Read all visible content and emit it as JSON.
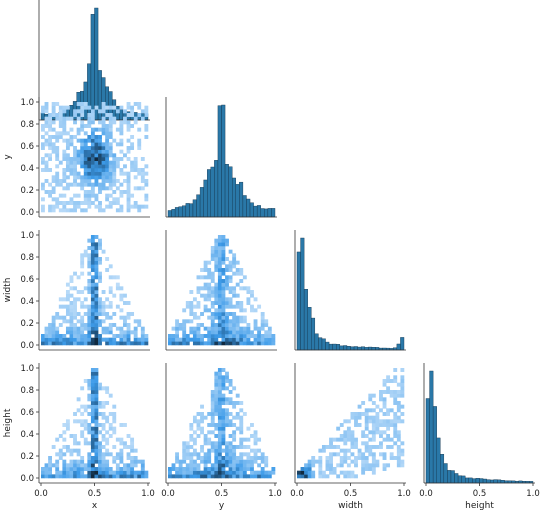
{
  "chart_data": {
    "type": "pairplot-corner",
    "variables": [
      "x",
      "y",
      "width",
      "height"
    ],
    "axis_range": [
      0,
      1
    ],
    "bins": 30,
    "colors": {
      "histogram_fill": "#2a78a8",
      "histogram_edge": "#12344d",
      "heat_low": "#cfe6fb",
      "heat_mid": "#3d9be9",
      "heat_high": "#112a40",
      "axis": "#333333"
    },
    "tick_values": [
      0.0,
      0.2,
      0.4,
      0.6,
      0.8,
      1.0
    ],
    "tick_labels": [
      "0.0",
      "0.2",
      "0.4",
      "0.6",
      "0.8",
      "1.0"
    ],
    "bottom_tick_values": [
      0.0,
      0.5,
      1.0
    ],
    "bottom_tick_labels": [
      "0.0",
      "0.5",
      "1.0"
    ],
    "marginals": [
      {
        "variable": "x",
        "shape": "peaked",
        "center": 0.5,
        "spread": 0.12
      },
      {
        "variable": "y",
        "shape": "peaked",
        "center": 0.5,
        "spread": 0.15
      },
      {
        "variable": "width",
        "shape": "decay",
        "peak_near": 0.04,
        "uptick_at": 1.0
      },
      {
        "variable": "height",
        "shape": "decay",
        "peak_near": 0.04
      }
    ],
    "joint_panels": [
      {
        "x": "x",
        "y": "y",
        "pattern": "blob"
      },
      {
        "x": "x",
        "y": "width",
        "pattern": "triangle"
      },
      {
        "x": "y",
        "y": "width",
        "pattern": "triangle-loose"
      },
      {
        "x": "x",
        "y": "height",
        "pattern": "triangle"
      },
      {
        "x": "y",
        "y": "height",
        "pattern": "triangle-loose"
      },
      {
        "x": "width",
        "y": "height",
        "pattern": "wedge"
      }
    ]
  }
}
